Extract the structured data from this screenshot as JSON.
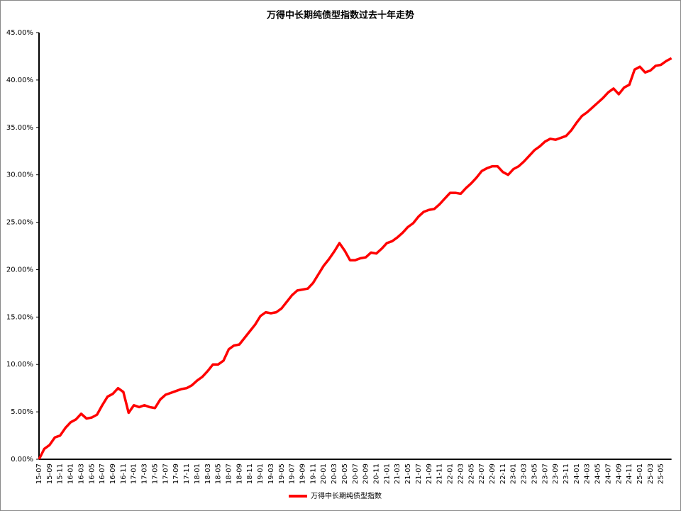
{
  "chart_data": {
    "type": "line",
    "title": "万得中长期纯债型指数过去十年走势",
    "categories": [
      "15-07",
      null,
      "15-09",
      null,
      "15-11",
      null,
      "16-01",
      null,
      "16-03",
      null,
      "16-05",
      null,
      "16-07",
      null,
      "16-09",
      null,
      "16-11",
      null,
      "17-01",
      null,
      "17-03",
      null,
      "17-05",
      null,
      "17-07",
      null,
      "17-09",
      null,
      "17-11",
      null,
      "18-01",
      null,
      "18-03",
      null,
      "18-05",
      null,
      "18-07",
      null,
      "18-09",
      null,
      "18-11",
      null,
      "19-01",
      null,
      "19-03",
      null,
      "19-05",
      null,
      "19-07",
      null,
      "19-09",
      null,
      "19-11",
      null,
      "20-01",
      null,
      "20-03",
      null,
      "20-05",
      null,
      "20-07",
      null,
      "20-09",
      null,
      "20-11",
      null,
      "21-01",
      null,
      "21-03",
      null,
      "21-05",
      null,
      "21-07",
      null,
      "21-09",
      null,
      "21-11",
      null,
      "22-01",
      null,
      "22-03",
      null,
      "22-05",
      null,
      "22-07",
      null,
      "22-09",
      null,
      "22-11",
      null,
      "23-01",
      null,
      "23-03",
      null,
      "23-05",
      null,
      "23-07",
      null,
      "23-09",
      null,
      "23-11",
      null,
      "24-01",
      null,
      "24-03",
      null,
      "24-05",
      null,
      "24-07",
      null,
      "24-09",
      null,
      "24-11",
      null,
      "25-01",
      null,
      "25-03",
      null,
      "25-05",
      null,
      null
    ],
    "series": [
      {
        "name": "万得中长期纯债型指数",
        "color": "#ff0000",
        "values": [
          0,
          1.1,
          1.5,
          2.3,
          2.5,
          3.3,
          3.9,
          4.2,
          4.8,
          4.3,
          4.4,
          4.7,
          5.7,
          6.6,
          6.9,
          7.5,
          7.1,
          4.9,
          5.7,
          5.5,
          5.7,
          5.5,
          5.4,
          6.3,
          6.8,
          7.0,
          7.2,
          7.4,
          7.5,
          7.8,
          8.3,
          8.7,
          9.3,
          10.0,
          10.0,
          10.4,
          11.6,
          12.0,
          12.1,
          12.8,
          13.5,
          14.2,
          15.1,
          15.5,
          15.4,
          15.5,
          15.9,
          16.6,
          17.3,
          17.8,
          17.9,
          18.0,
          18.6,
          19.5,
          20.4,
          21.1,
          21.9,
          22.8,
          22.0,
          21.0,
          21.0,
          21.2,
          21.3,
          21.8,
          21.7,
          22.2,
          22.8,
          23.0,
          23.4,
          23.9,
          24.5,
          24.9,
          25.6,
          26.1,
          26.3,
          26.4,
          26.9,
          27.5,
          28.1,
          28.1,
          28.0,
          28.6,
          29.1,
          29.7,
          30.4,
          30.7,
          30.9,
          30.9,
          30.3,
          30.0,
          30.6,
          30.9,
          31.4,
          32.0,
          32.6,
          33.0,
          33.5,
          33.8,
          33.7,
          33.9,
          34.1,
          34.7,
          35.5,
          36.2,
          36.6,
          37.1,
          37.6,
          38.1,
          38.7,
          39.1,
          38.5,
          39.2,
          39.5,
          41.1,
          41.4,
          40.8,
          41.0,
          41.5,
          41.6,
          42.0,
          42.3
        ]
      }
    ],
    "ylim": [
      0,
      45
    ],
    "yticks": [
      {
        "value": 0,
        "label": "0.00%"
      },
      {
        "value": 5,
        "label": "5.00%"
      },
      {
        "value": 10,
        "label": "10.00%"
      },
      {
        "value": 15,
        "label": "15.00%"
      },
      {
        "value": 20,
        "label": "20.00%"
      },
      {
        "value": 25,
        "label": "25.00%"
      },
      {
        "value": 30,
        "label": "30.00%"
      },
      {
        "value": 35,
        "label": "35.00%"
      },
      {
        "value": 40,
        "label": "40.00%"
      },
      {
        "value": 45,
        "label": "45.00%"
      }
    ],
    "legend": "bottom"
  }
}
